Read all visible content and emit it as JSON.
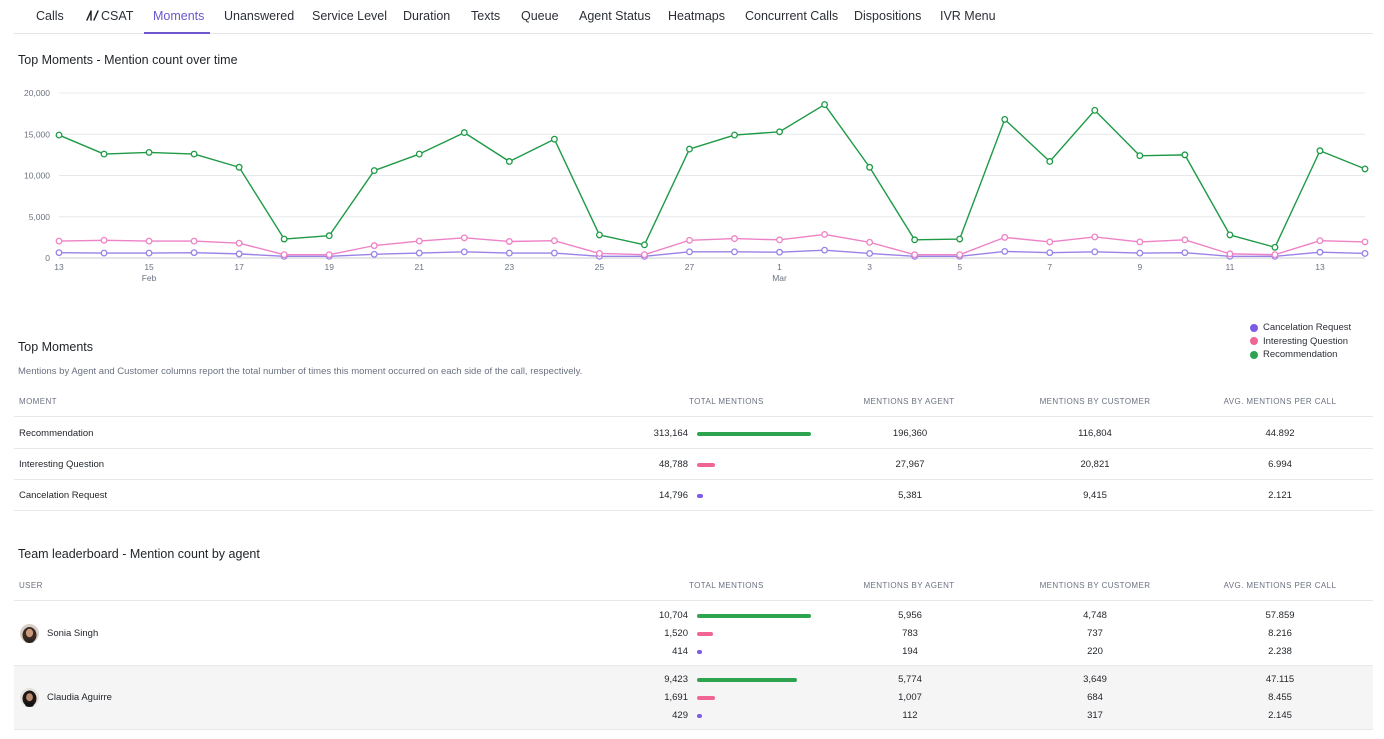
{
  "tabs": [
    {
      "label": "Calls",
      "name": "tab-calls"
    },
    {
      "label": "CSAT",
      "name": "tab-csat"
    },
    {
      "label": "Moments",
      "name": "tab-moments",
      "active": true
    },
    {
      "label": "Unanswered",
      "name": "tab-unanswered"
    },
    {
      "label": "Service Level",
      "name": "tab-service-level"
    },
    {
      "label": "Duration",
      "name": "tab-duration"
    },
    {
      "label": "Texts",
      "name": "tab-texts"
    },
    {
      "label": "Queue",
      "name": "tab-queue"
    },
    {
      "label": "Agent Status",
      "name": "tab-agent-status"
    },
    {
      "label": "Heatmaps",
      "name": "tab-heatmaps"
    },
    {
      "label": "Concurrent Calls",
      "name": "tab-concurrent-calls"
    },
    {
      "label": "Dispositions",
      "name": "tab-dispositions"
    },
    {
      "label": "IVR Menu",
      "name": "tab-ivr-menu"
    }
  ],
  "colors": {
    "accent": "#6e56cf",
    "recommendation": "#2ea44f",
    "interesting_question": "#f06595",
    "cancelation_request": "#7c5ce6",
    "chart_recommendation": "#1e9a46",
    "chart_interesting_question": "#ee82c6",
    "chart_cancelation_request": "#9a82e6"
  },
  "chart_title": "Top Moments - Mention count over time",
  "chart_data": {
    "type": "line",
    "title": "Top Moments - Mention count over time",
    "xlabel": "",
    "ylabel": "",
    "x": [
      "Feb 13",
      "Feb 14",
      "Feb 15",
      "Feb 16",
      "Feb 17",
      "Feb 18",
      "Feb 19",
      "Feb 20",
      "Feb 21",
      "Feb 22",
      "Feb 23",
      "Feb 24",
      "Feb 25",
      "Feb 26",
      "Feb 27",
      "Feb 28",
      "Mar 1",
      "Mar 2",
      "Mar 3",
      "Mar 4",
      "Mar 5",
      "Mar 6",
      "Mar 7",
      "Mar 8",
      "Mar 9",
      "Mar 10",
      "Mar 11",
      "Mar 12",
      "Mar 13",
      "Mar 14"
    ],
    "x_tick_labels": [
      {
        "index": 0,
        "label": "13",
        "sub": ""
      },
      {
        "index": 2,
        "label": "15",
        "sub": "Feb"
      },
      {
        "index": 4,
        "label": "17",
        "sub": ""
      },
      {
        "index": 6,
        "label": "19",
        "sub": ""
      },
      {
        "index": 8,
        "label": "21",
        "sub": ""
      },
      {
        "index": 10,
        "label": "23",
        "sub": ""
      },
      {
        "index": 12,
        "label": "25",
        "sub": ""
      },
      {
        "index": 14,
        "label": "27",
        "sub": ""
      },
      {
        "index": 16,
        "label": "1",
        "sub": "Mar"
      },
      {
        "index": 18,
        "label": "3",
        "sub": ""
      },
      {
        "index": 20,
        "label": "5",
        "sub": ""
      },
      {
        "index": 22,
        "label": "7",
        "sub": ""
      },
      {
        "index": 24,
        "label": "9",
        "sub": ""
      },
      {
        "index": 26,
        "label": "11",
        "sub": ""
      },
      {
        "index": 28,
        "label": "13",
        "sub": ""
      }
    ],
    "y_ticks": [
      0,
      5000,
      10000,
      15000,
      20000
    ],
    "y_tick_labels": [
      "0",
      "5,000",
      "10,000",
      "15,000",
      "20,000"
    ],
    "ylim": [
      0,
      20000
    ],
    "grid": true,
    "legend_position": "right",
    "series": [
      {
        "name": "Cancelation Request",
        "values": [
          650,
          600,
          600,
          650,
          500,
          200,
          200,
          450,
          600,
          750,
          600,
          600,
          200,
          200,
          750,
          750,
          700,
          950,
          550,
          200,
          200,
          800,
          650,
          750,
          600,
          650,
          200,
          200,
          700,
          550
        ]
      },
      {
        "name": "Interesting Question",
        "values": [
          2050,
          2150,
          2050,
          2050,
          1800,
          400,
          400,
          1500,
          2050,
          2450,
          2000,
          2100,
          550,
          400,
          2150,
          2350,
          2200,
          2850,
          1900,
          400,
          400,
          2500,
          1950,
          2550,
          1950,
          2200,
          500,
          400,
          2100,
          1950
        ]
      },
      {
        "name": "Recommendation",
        "values": [
          14900,
          12600,
          12800,
          12600,
          11000,
          2300,
          2700,
          10600,
          12600,
          15200,
          11700,
          14400,
          2800,
          1600,
          13200,
          14900,
          15300,
          18600,
          11000,
          2200,
          2300,
          16800,
          11700,
          17900,
          12400,
          12500,
          2800,
          1300,
          13000,
          10800
        ]
      }
    ]
  },
  "legend": [
    {
      "label": "Cancelation Request",
      "name": "legend-item-cancelation-request",
      "color": "#7c5ce6"
    },
    {
      "label": "Interesting Question",
      "name": "legend-item-interesting-question",
      "color": "#f06595"
    },
    {
      "label": "Recommendation",
      "name": "legend-item-recommendation",
      "color": "#2ea44f"
    }
  ],
  "top_moments": {
    "title": "Top Moments",
    "description": "Mentions by Agent and Customer columns report the total number of times this moment occurred on each side of the call, respectively.",
    "headers": {
      "moment": "MOMENT",
      "total": "TOTAL MENTIONS",
      "agent": "MENTIONS BY AGENT",
      "customer": "MENTIONS BY CUSTOMER",
      "avg": "AVG. MENTIONS PER CALL"
    },
    "rows": [
      {
        "moment": "Recommendation",
        "total": "313,164",
        "total_value": 313164,
        "color": "#2ea44f",
        "agent": "196,360",
        "customer": "116,804",
        "avg": "44.892"
      },
      {
        "moment": "Interesting Question",
        "total": "48,788",
        "total_value": 48788,
        "color": "#f06595",
        "agent": "27,967",
        "customer": "20,821",
        "avg": "6.994"
      },
      {
        "moment": "Cancelation Request",
        "total": "14,796",
        "total_value": 14796,
        "color": "#7c5ce6",
        "agent": "5,381",
        "customer": "9,415",
        "avg": "2.121"
      }
    ]
  },
  "leaderboard": {
    "title": "Team leaderboard - Mention count by agent",
    "headers": {
      "user": "USER",
      "total": "TOTAL MENTIONS",
      "agent": "MENTIONS BY AGENT",
      "customer": "MENTIONS BY CUSTOMER",
      "avg": "AVG. MENTIONS PER CALL"
    },
    "users": [
      {
        "name": "Sonia Singh",
        "lines": [
          {
            "total": "10,704",
            "total_value": 10704,
            "color": "#2ea44f",
            "agent": "5,956",
            "customer": "4,748",
            "avg": "57.859"
          },
          {
            "total": "1,520",
            "total_value": 1520,
            "color": "#f06595",
            "agent": "783",
            "customer": "737",
            "avg": "8.216"
          },
          {
            "total": "414",
            "total_value": 414,
            "color": "#7c5ce6",
            "agent": "194",
            "customer": "220",
            "avg": "2.238"
          }
        ]
      },
      {
        "name": "Claudia Aguirre",
        "lines": [
          {
            "total": "9,423",
            "total_value": 9423,
            "color": "#2ea44f",
            "agent": "5,774",
            "customer": "3,649",
            "avg": "47.115"
          },
          {
            "total": "1,691",
            "total_value": 1691,
            "color": "#f06595",
            "agent": "1,007",
            "customer": "684",
            "avg": "8.455"
          },
          {
            "total": "429",
            "total_value": 429,
            "color": "#7c5ce6",
            "agent": "112",
            "customer": "317",
            "avg": "2.145"
          }
        ]
      }
    ]
  }
}
